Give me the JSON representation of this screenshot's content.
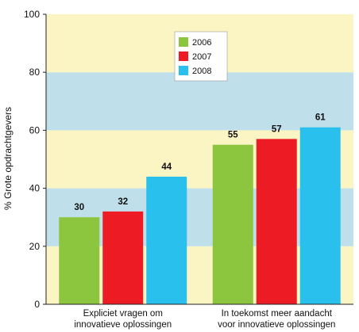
{
  "chart_data": {
    "type": "bar",
    "ylabel": "% Grote  opdrachtgevers",
    "ylim": [
      0,
      100
    ],
    "yticks": [
      0,
      20,
      40,
      60,
      80,
      100
    ],
    "background_bands": {
      "colors": [
        "#fbf5c4",
        "#bfe0ea"
      ]
    },
    "categories": [
      [
        "Expliciet vragen om",
        "innovatieve oplossingen"
      ],
      [
        "In toekomst meer aandacht",
        "voor innovatieve oplossingen"
      ]
    ],
    "series": [
      {
        "name": "2006",
        "color": "#8cc63f",
        "values": [
          30,
          55
        ]
      },
      {
        "name": "2007",
        "color": "#ed1c24",
        "values": [
          32,
          57
        ]
      },
      {
        "name": "2008",
        "color": "#29c0ee",
        "values": [
          44,
          61
        ]
      }
    ],
    "legend_position": "top-center",
    "show_data_labels": true
  }
}
